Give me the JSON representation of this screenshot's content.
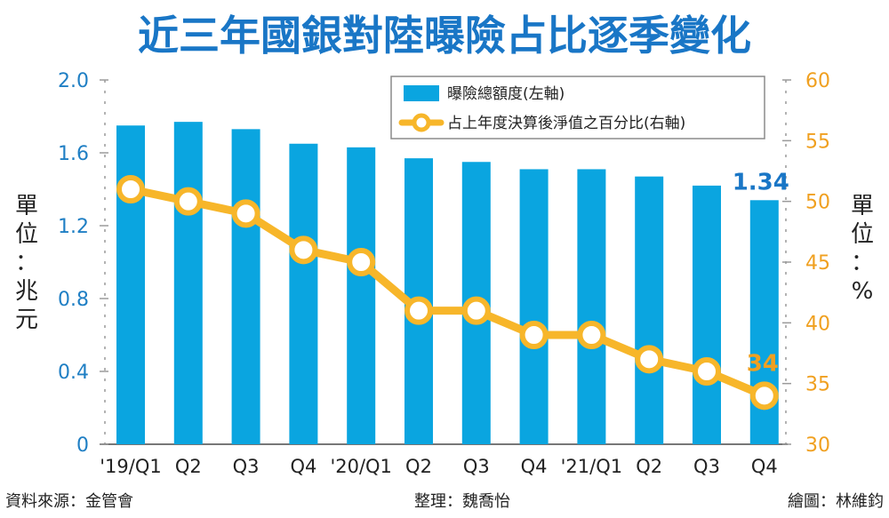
{
  "chart_data": {
    "type": "bar+line",
    "title": "近三年國銀對陸曝險占比逐季變化",
    "categories": [
      "'19/Q1",
      "Q2",
      "Q3",
      "Q4",
      "'20/Q1",
      "Q2",
      "Q3",
      "Q4",
      "'21/Q1",
      "Q2",
      "Q3",
      "Q4"
    ],
    "series": [
      {
        "name": "曝險總額度(左軸)",
        "type": "bar",
        "axis": "left",
        "values": [
          1.75,
          1.77,
          1.73,
          1.65,
          1.63,
          1.57,
          1.55,
          1.51,
          1.51,
          1.47,
          1.42,
          1.34
        ]
      },
      {
        "name": "占上年度決算後淨值之百分比(右軸)",
        "type": "line",
        "axis": "right",
        "values": [
          51,
          50,
          49,
          46,
          45,
          41,
          41,
          39,
          39,
          37,
          36,
          34
        ]
      }
    ],
    "left_axis": {
      "ylim": [
        0,
        2.0
      ],
      "ticks": [
        "0",
        "0.4",
        "0.8",
        "1.2",
        "1.6",
        "2.0"
      ],
      "tick_values": [
        0,
        0.4,
        0.8,
        1.2,
        1.6,
        2.0
      ],
      "label": "單位：兆元"
    },
    "right_axis": {
      "ylim": [
        30,
        60
      ],
      "ticks": [
        "30",
        "35",
        "40",
        "45",
        "50",
        "55",
        "60"
      ],
      "tick_values": [
        30,
        35,
        40,
        45,
        50,
        55,
        60
      ],
      "label": "單位：%"
    },
    "annotations": {
      "last_bar": "1.34",
      "last_point": "34"
    },
    "legend_position": "top-right",
    "grid": false
  },
  "footer": {
    "source": "資料來源：金管會",
    "editor": "整理：魏喬怡",
    "artist": "繪圖：林維鈞"
  },
  "colors": {
    "bar": "#0aa5e0",
    "line": "#f7b62a",
    "title": "#1976c6",
    "left_axis": "#1f7fc4",
    "right_axis": "#f0a020"
  }
}
